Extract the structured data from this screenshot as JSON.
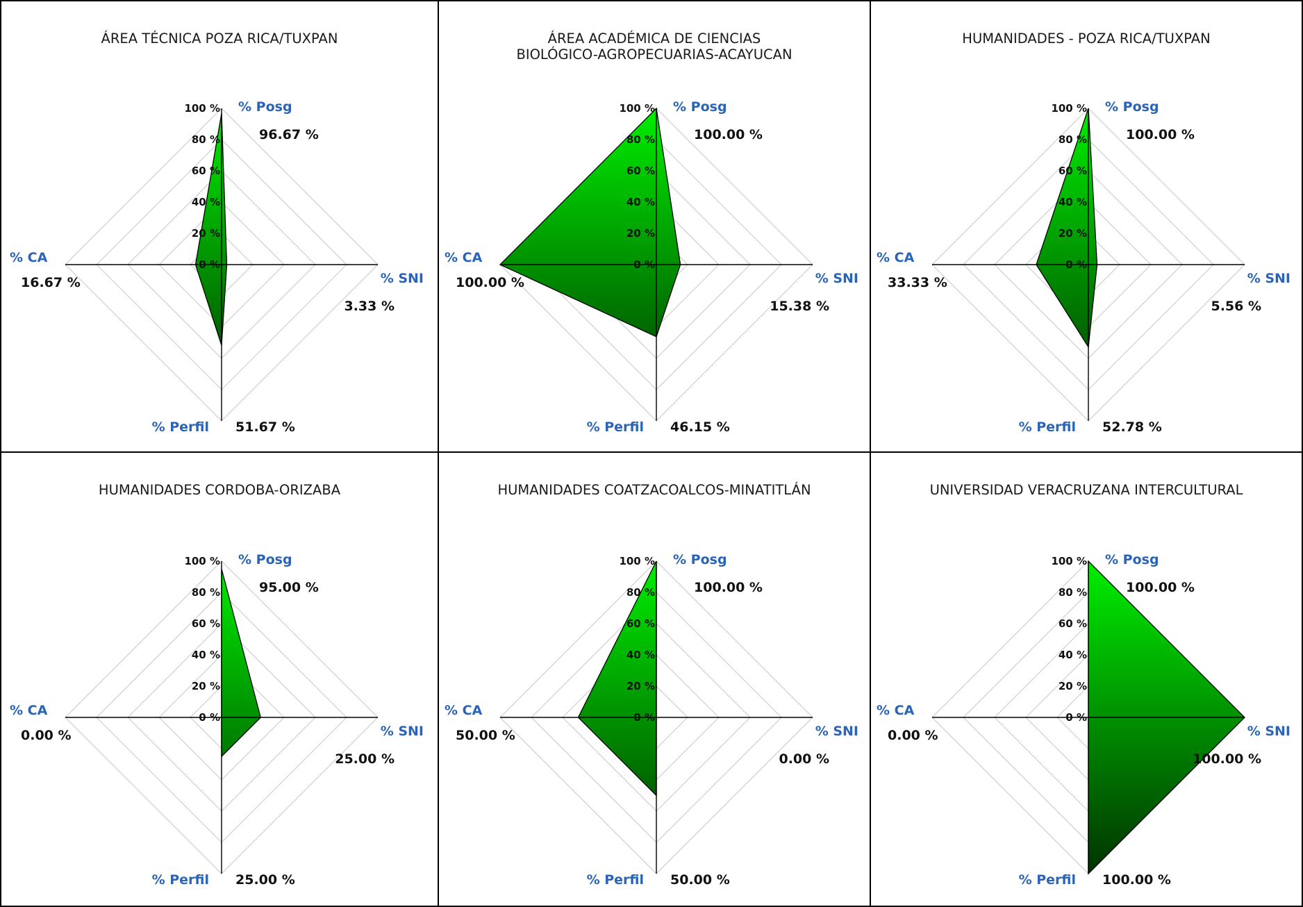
{
  "chart_data": [
    {
      "type": "radar",
      "title": "ÁREA TÉCNICA POZA RICA/TUXPAN",
      "axes": [
        "% Posg",
        "% SNI",
        "% Perfil",
        "% CA"
      ],
      "values": [
        96.67,
        3.33,
        51.67,
        16.67
      ],
      "value_labels": [
        "96.67 %",
        "3.33 %",
        "51.67 %",
        "16.67 %"
      ],
      "range": [
        0,
        100
      ],
      "ticks": [
        "0 %",
        "20 %",
        "40 %",
        "60 %",
        "80 %",
        "100 %"
      ]
    },
    {
      "type": "radar",
      "title": "ÁREA ACADÉMICA DE CIENCIAS\nBIOLÓGICO-AGROPECUARIAS-ACAYUCAN",
      "axes": [
        "% Posg",
        "% SNI",
        "% Perfil",
        "% CA"
      ],
      "values": [
        100.0,
        15.38,
        46.15,
        100.0
      ],
      "value_labels": [
        "100.00 %",
        "15.38 %",
        "46.15 %",
        "100.00 %"
      ],
      "range": [
        0,
        100
      ],
      "ticks": [
        "0 %",
        "20 %",
        "40 %",
        "60 %",
        "80 %",
        "100 %"
      ]
    },
    {
      "type": "radar",
      "title": "HUMANIDADES - POZA RICA/TUXPAN",
      "axes": [
        "% Posg",
        "% SNI",
        "% Perfil",
        "% CA"
      ],
      "values": [
        100.0,
        5.56,
        52.78,
        33.33
      ],
      "value_labels": [
        "100.00 %",
        "5.56 %",
        "52.78 %",
        "33.33 %"
      ],
      "range": [
        0,
        100
      ],
      "ticks": [
        "0 %",
        "20 %",
        "40 %",
        "60 %",
        "80 %",
        "100 %"
      ]
    },
    {
      "type": "radar",
      "title": "HUMANIDADES CORDOBA-ORIZABA",
      "axes": [
        "% Posg",
        "% SNI",
        "% Perfil",
        "% CA"
      ],
      "values": [
        95.0,
        25.0,
        25.0,
        0.0
      ],
      "value_labels": [
        "95.00 %",
        "25.00 %",
        "25.00 %",
        "0.00 %"
      ],
      "range": [
        0,
        100
      ],
      "ticks": [
        "0 %",
        "20 %",
        "40 %",
        "60 %",
        "80 %",
        "100 %"
      ]
    },
    {
      "type": "radar",
      "title": "HUMANIDADES COATZACOALCOS-MINATITLÁN",
      "axes": [
        "% Posg",
        "% SNI",
        "% Perfil",
        "% CA"
      ],
      "values": [
        100.0,
        0.0,
        50.0,
        50.0
      ],
      "value_labels": [
        "100.00 %",
        "0.00 %",
        "50.00 %",
        "50.00 %"
      ],
      "range": [
        0,
        100
      ],
      "ticks": [
        "0 %",
        "20 %",
        "40 %",
        "60 %",
        "80 %",
        "100 %"
      ]
    },
    {
      "type": "radar",
      "title": "UNIVERSIDAD VERACRUZANA INTERCULTURAL",
      "axes": [
        "% Posg",
        "% SNI",
        "% Perfil",
        "% CA"
      ],
      "values": [
        100.0,
        100.0,
        100.0,
        0.0
      ],
      "value_labels": [
        "100.00 %",
        "100.00 %",
        "100.00 %",
        "0.00 %"
      ],
      "range": [
        0,
        100
      ],
      "ticks": [
        "0 %",
        "20 %",
        "40 %",
        "60 %",
        "80 %",
        "100 %"
      ]
    }
  ],
  "colors": {
    "fill_top": "#00ee00",
    "fill_bottom": "#003300",
    "outline": "#000000",
    "axis": "#000000",
    "web": "#c8c8c8",
    "axis_name": "#2a64b8"
  }
}
